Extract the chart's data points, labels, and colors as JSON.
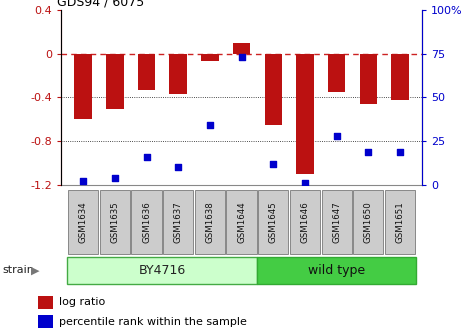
{
  "title": "GDS94 / 6075",
  "samples": [
    "GSM1634",
    "GSM1635",
    "GSM1636",
    "GSM1637",
    "GSM1638",
    "GSM1644",
    "GSM1645",
    "GSM1646",
    "GSM1647",
    "GSM1650",
    "GSM1651"
  ],
  "log_ratio": [
    -0.6,
    -0.51,
    -0.33,
    -0.37,
    -0.07,
    0.1,
    -0.65,
    -1.1,
    -0.35,
    -0.46,
    -0.42
  ],
  "percentile_rank": [
    2,
    4,
    16,
    10,
    34,
    73,
    12,
    1,
    28,
    19,
    19
  ],
  "ylim": [
    -1.2,
    0.4
  ],
  "yticks_left": [
    -1.2,
    -0.8,
    -0.4,
    0.0,
    0.4
  ],
  "ytick_labels_left": [
    "-1.2",
    "-0.8",
    "-0.4",
    "0",
    "0.4"
  ],
  "yticks_right_pct": [
    0,
    25,
    50,
    75,
    100
  ],
  "ytick_labels_right": [
    "0",
    "25",
    "50",
    "75",
    "100%"
  ],
  "bar_color": "#bb1111",
  "dot_color": "#0000cc",
  "zero_line_color": "#cc2222",
  "grid_color": "#111111",
  "bg_color": "#ffffff",
  "group1_label": "BY4716",
  "group1_count": 6,
  "group1_bg": "#ccffcc",
  "group1_edge": "#44aa44",
  "group2_label": "wild type",
  "group2_count": 5,
  "group2_bg": "#44cc44",
  "group2_edge": "#33aa33",
  "strain_label": "strain",
  "legend_log_ratio": "log ratio",
  "legend_percentile": "percentile rank within the sample",
  "bar_width": 0.55,
  "sample_box_color": "#cccccc",
  "sample_box_edge": "#888888"
}
